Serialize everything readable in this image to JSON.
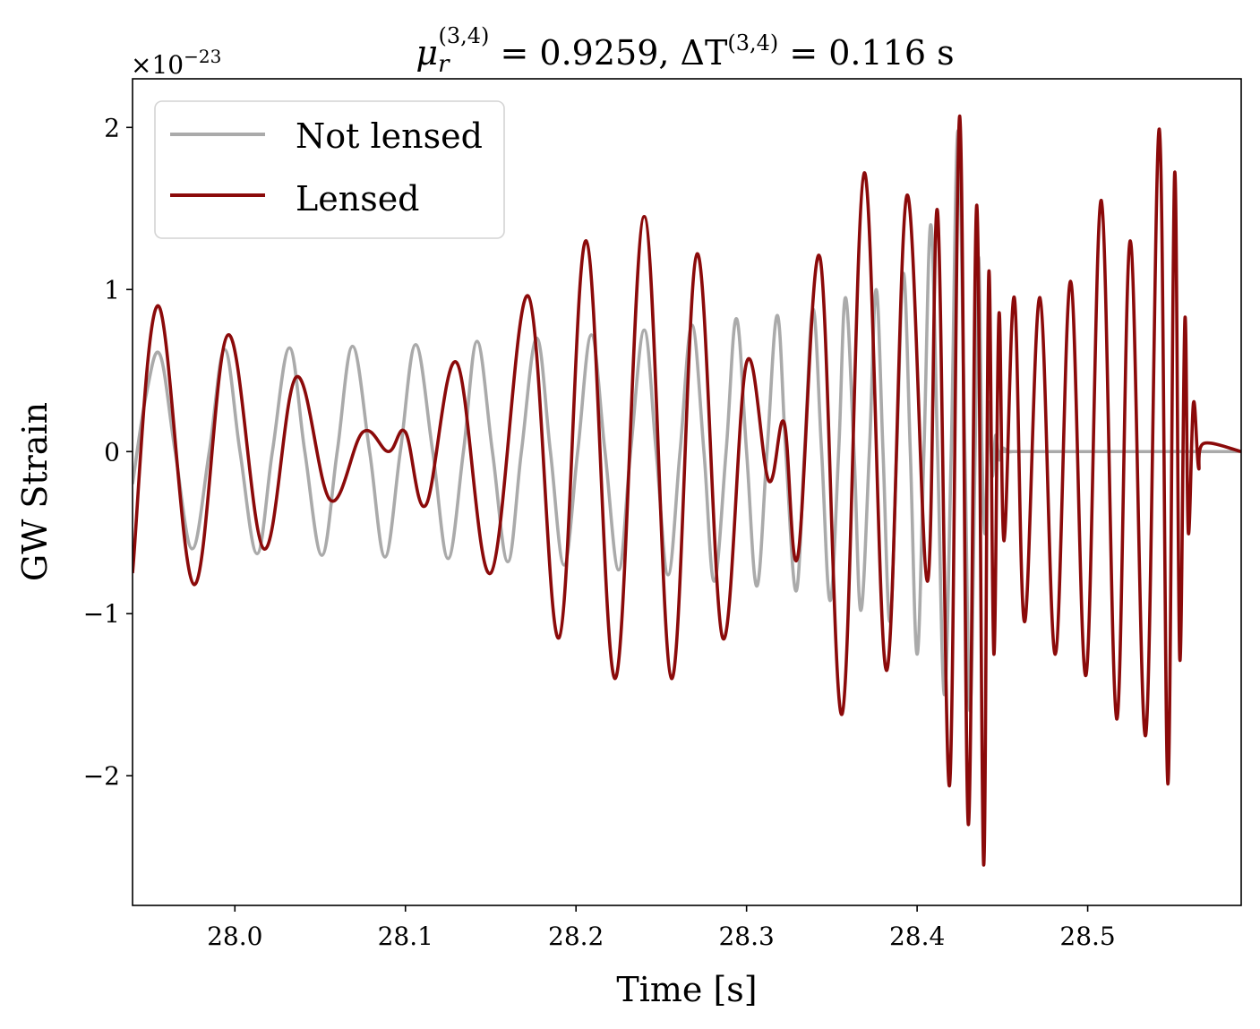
{
  "chart_data": {
    "type": "line",
    "title": "μ_r^(3,4) = 0.9259, ΔT^(3,4) = 0.116 s",
    "title_parts": {
      "mu_symbol": "μ",
      "mu_sub": "r",
      "mu_sup": "(3,4)",
      "mu_value": " = 0.9259, ",
      "dt_symbol": "ΔT",
      "dt_sup": "(3,4)",
      "dt_value": " = 0.116 s"
    },
    "xlabel": "Time [s]",
    "ylabel": "GW Strain",
    "offset_text": {
      "base": "×10",
      "exponent": "−23"
    },
    "xlim": [
      27.94,
      28.59
    ],
    "ylim": [
      -2.8,
      2.3
    ],
    "x_ticks": [
      {
        "value": 28.0,
        "label": "28.0"
      },
      {
        "value": 28.1,
        "label": "28.1"
      },
      {
        "value": 28.2,
        "label": "28.2"
      },
      {
        "value": 28.3,
        "label": "28.3"
      },
      {
        "value": 28.4,
        "label": "28.4"
      },
      {
        "value": 28.5,
        "label": "28.5"
      }
    ],
    "y_ticks": [
      {
        "value": 2,
        "label": "2"
      },
      {
        "value": 1,
        "label": "1"
      },
      {
        "value": 0,
        "label": "0"
      },
      {
        "value": -1,
        "label": "−1"
      },
      {
        "value": -2,
        "label": "−2"
      }
    ],
    "legend": {
      "position": "top-left"
    },
    "series": [
      {
        "name": "Not lensed",
        "color": "#aaaaaa",
        "x": [
          27.94,
          27.948,
          27.956,
          27.965,
          27.975,
          27.985,
          27.994,
          28.003,
          28.013,
          28.022,
          28.032,
          28.041,
          28.051,
          28.06,
          28.069,
          28.079,
          28.088,
          28.097,
          28.106,
          28.116,
          28.125,
          28.134,
          28.142,
          28.151,
          28.16,
          28.168,
          28.177,
          28.185,
          28.193,
          28.201,
          28.209,
          28.217,
          28.225,
          28.232,
          28.24,
          28.247,
          28.254,
          28.261,
          28.268,
          28.275,
          28.281,
          28.288,
          28.294,
          28.3,
          28.306,
          28.312,
          28.318,
          28.323,
          28.329,
          28.334,
          28.339,
          28.344,
          28.349,
          28.354,
          28.358,
          28.363,
          28.367,
          28.372,
          28.376,
          28.38,
          28.384,
          28.388,
          28.392,
          28.396,
          28.4,
          28.404,
          28.408,
          28.412,
          28.416,
          28.42,
          28.424,
          28.428,
          28.431,
          28.434,
          28.436,
          28.438,
          28.44,
          28.442,
          28.444,
          28.446,
          28.448,
          28.45,
          28.453,
          28.456,
          28.46,
          28.59
        ],
        "values": [
          -0.2,
          0.35,
          0.6,
          0.0,
          -0.6,
          0.0,
          0.63,
          0.0,
          -0.63,
          0.0,
          0.64,
          0.0,
          -0.64,
          0.0,
          0.65,
          0.0,
          -0.65,
          0.0,
          0.66,
          0.0,
          -0.66,
          0.0,
          0.68,
          0.0,
          -0.68,
          0.0,
          0.7,
          0.0,
          -0.7,
          0.0,
          0.72,
          0.0,
          -0.73,
          0.0,
          0.75,
          0.0,
          -0.76,
          0.0,
          0.78,
          0.0,
          -0.8,
          0.0,
          0.82,
          0.0,
          -0.83,
          0.0,
          0.84,
          0.0,
          -0.86,
          0.0,
          0.88,
          0.0,
          -0.92,
          0.0,
          0.95,
          0.0,
          -0.98,
          0.0,
          1.0,
          0.0,
          -1.05,
          0.0,
          1.1,
          0.0,
          -1.25,
          0.0,
          1.4,
          0.0,
          -1.5,
          0.0,
          1.98,
          0.0,
          -1.6,
          0.0,
          1.2,
          0.0,
          -0.5,
          0.3,
          -0.15,
          0.1,
          -0.05,
          0.02,
          0.0,
          0.0,
          0.0,
          0.0
        ]
      },
      {
        "name": "Lensed",
        "color": "#8b0a0a",
        "x": [
          27.94,
          27.955,
          27.976,
          27.996,
          28.017,
          28.036,
          28.056,
          28.075,
          28.09,
          28.1,
          28.112,
          28.13,
          28.15,
          28.172,
          28.19,
          28.206,
          28.223,
          28.24,
          28.256,
          28.271,
          28.286,
          28.3,
          28.313,
          28.322,
          28.33,
          28.343,
          28.356,
          28.369,
          28.382,
          28.394,
          28.406,
          28.412,
          28.419,
          28.425,
          28.43,
          28.435,
          28.439,
          28.442,
          28.445,
          28.448,
          28.451,
          28.457,
          28.463,
          28.472,
          28.481,
          28.49,
          28.499,
          28.508,
          28.517,
          28.525,
          28.534,
          28.542,
          28.547,
          28.551,
          28.554,
          28.557,
          28.559,
          28.562,
          28.565,
          28.568,
          28.59
        ],
        "values": [
          -0.75,
          0.9,
          -0.82,
          0.72,
          -0.6,
          0.46,
          -0.3,
          0.12,
          0.0,
          0.12,
          -0.33,
          0.55,
          -0.75,
          0.96,
          -1.15,
          1.3,
          -1.4,
          1.45,
          -1.4,
          1.22,
          -1.15,
          0.55,
          -0.18,
          0.18,
          -0.65,
          1.2,
          -1.62,
          1.72,
          -1.35,
          1.58,
          -0.8,
          1.48,
          -2.06,
          2.07,
          -2.3,
          1.52,
          -2.55,
          1.1,
          -1.25,
          0.85,
          -0.55,
          0.95,
          -1.05,
          0.95,
          -1.25,
          1.05,
          -1.38,
          1.55,
          -1.65,
          1.3,
          -1.75,
          1.99,
          -2.05,
          1.72,
          -1.28,
          0.82,
          -0.5,
          0.3,
          -0.1,
          0.05,
          0.0
        ]
      }
    ]
  }
}
